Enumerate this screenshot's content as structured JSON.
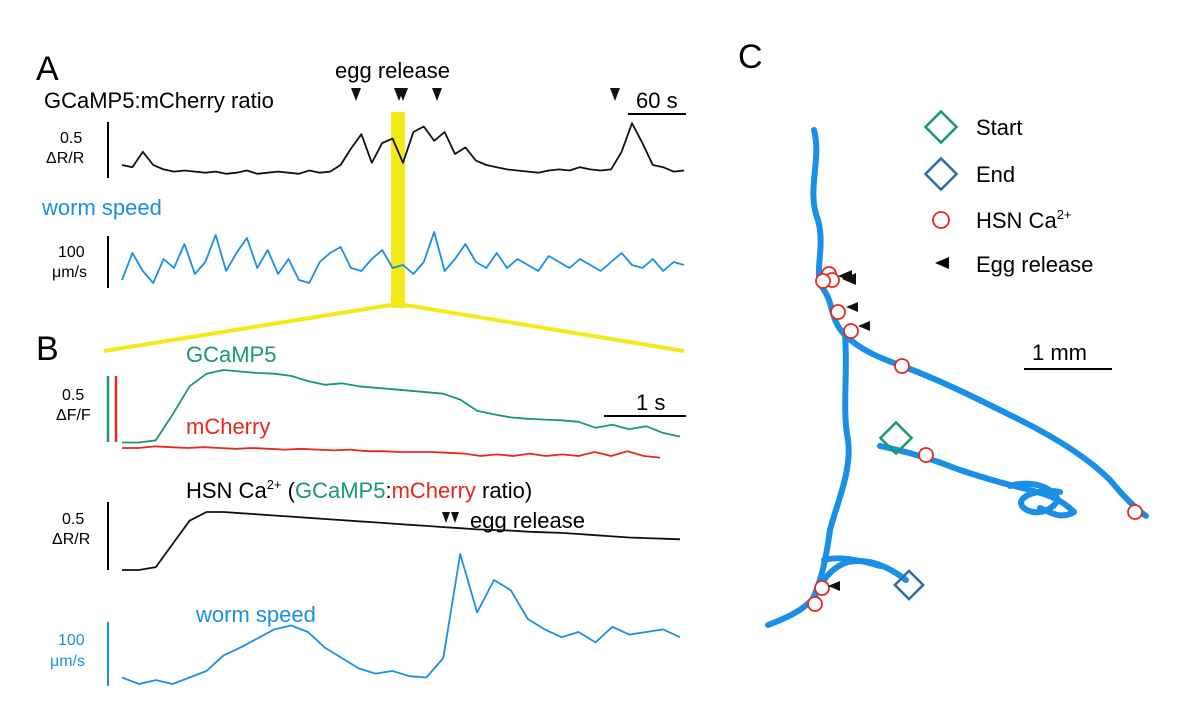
{
  "chart_data": [
    {
      "panel": "A",
      "type": "line",
      "title": "GCaMP5:mCherry ratio",
      "annotations": [
        "egg release"
      ],
      "scale_bars": {
        "time": "60 s",
        "ratio": [
          "0.5",
          "ΔR/R"
        ],
        "speed": [
          "100",
          "μm/s"
        ]
      },
      "series": [
        {
          "name": "GCaMP5:mCherry ratio",
          "color": "#111111",
          "values": [
            0.1,
            0.08,
            0.22,
            0.1,
            0.06,
            0.04,
            0.05,
            0.04,
            0.03,
            0.04,
            0.02,
            0.03,
            0.05,
            0.02,
            0.03,
            0.04,
            0.03,
            0.02,
            0.05,
            0.03,
            0.04,
            0.1,
            0.25,
            0.38,
            0.12,
            0.3,
            0.34,
            0.12,
            0.4,
            0.45,
            0.32,
            0.4,
            0.2,
            0.26,
            0.14,
            0.1,
            0.08,
            0.06,
            0.05,
            0.04,
            0.03,
            0.05,
            0.06,
            0.05,
            0.08,
            0.06,
            0.05,
            0.06,
            0.22,
            0.48,
            0.3,
            0.1,
            0.08,
            0.04,
            0.05
          ]
        },
        {
          "name": "worm speed",
          "color": "#1a8fe6",
          "label": "worm speed",
          "values": [
            0.1,
            0.55,
            0.25,
            0.05,
            0.45,
            0.3,
            0.7,
            0.2,
            0.4,
            0.85,
            0.25,
            0.55,
            0.8,
            0.3,
            0.6,
            0.2,
            0.45,
            0.1,
            0.05,
            0.4,
            0.55,
            0.65,
            0.3,
            0.25,
            0.45,
            0.6,
            0.3,
            0.35,
            0.2,
            0.4,
            0.9,
            0.25,
            0.45,
            0.7,
            0.4,
            0.3,
            0.55,
            0.3,
            0.45,
            0.35,
            0.25,
            0.5,
            0.4,
            0.3,
            0.45,
            0.35,
            0.25,
            0.4,
            0.55,
            0.35,
            0.3,
            0.45,
            0.25,
            0.4,
            0.35
          ]
        }
      ]
    },
    {
      "panel": "B",
      "type": "line",
      "scale_bars": {
        "time": "1 s",
        "fluor": [
          "0.5",
          "ΔF/F"
        ],
        "ratio": [
          "0.5",
          "ΔR/R"
        ],
        "speed": [
          "100",
          "μm/s"
        ]
      },
      "ratio_title": {
        "prefix": "HSN Ca",
        "sup": "2+",
        "open": " (",
        "gcamp": "GCaMP5",
        "colon": ":",
        "mcherry": "mCherry",
        "close": " ratio)"
      },
      "annotations": [
        "egg release"
      ],
      "series": [
        {
          "name": "GCaMP5",
          "color": "#1a9a6a",
          "values": [
            0.02,
            0.02,
            0.05,
            0.4,
            0.78,
            0.95,
            1.0,
            0.98,
            0.96,
            0.95,
            0.92,
            0.85,
            0.8,
            0.82,
            0.78,
            0.76,
            0.74,
            0.72,
            0.7,
            0.68,
            0.6,
            0.45,
            0.4,
            0.36,
            0.34,
            0.33,
            0.32,
            0.3,
            0.22,
            0.26,
            0.2,
            0.24,
            0.15,
            0.1
          ]
        },
        {
          "name": "mCherry",
          "color": "#e8281f",
          "values": [
            0.1,
            0.1,
            0.12,
            0.11,
            0.1,
            0.11,
            0.1,
            0.09,
            0.1,
            0.09,
            0.08,
            0.09,
            0.08,
            0.07,
            0.08,
            0.06,
            0.06,
            0.05,
            0.05,
            0.05,
            0.04,
            0.03,
            0.0,
            0.02,
            0.0,
            0.03,
            0.0,
            0.02,
            0.0,
            0.05,
            0.0,
            0.06,
            0.0,
            -0.02
          ]
        },
        {
          "name": "HSN Ca2+ ratio",
          "color": "#111111",
          "values": [
            0.0,
            0.0,
            0.05,
            0.45,
            0.85,
            1.0,
            1.0,
            0.98,
            0.96,
            0.94,
            0.92,
            0.9,
            0.88,
            0.86,
            0.84,
            0.82,
            0.8,
            0.78,
            0.76,
            0.74,
            0.72,
            0.7,
            0.69,
            0.68,
            0.66,
            0.65,
            0.64,
            0.62,
            0.6,
            0.58,
            0.56,
            0.55,
            0.54,
            0.53
          ]
        },
        {
          "name": "worm speed",
          "color": "#1a8fe6",
          "label": "worm speed",
          "values": [
            0.05,
            0.0,
            0.03,
            0.0,
            0.05,
            0.1,
            0.22,
            0.28,
            0.35,
            0.42,
            0.45,
            0.4,
            0.28,
            0.2,
            0.12,
            0.08,
            0.1,
            0.06,
            0.05,
            0.2,
            1.0,
            0.55,
            0.8,
            0.72,
            0.5,
            0.42,
            0.36,
            0.4,
            0.32,
            0.44,
            0.38,
            0.4,
            0.42,
            0.36
          ]
        }
      ]
    },
    {
      "panel": "C",
      "type": "scatter",
      "scale_bar": "1 mm",
      "legend": [
        {
          "label": "Start",
          "marker": "diamond",
          "color": "#1a9a6a"
        },
        {
          "label": "End",
          "marker": "diamond",
          "color": "#2a6fa8"
        },
        {
          "label": "HSN Ca",
          "sup": "2+",
          "marker": "circle",
          "color": "#e8281f"
        },
        {
          "label": "Egg release",
          "marker": "triangle",
          "color": "#111111"
        }
      ]
    }
  ],
  "colors": {
    "gcamp": "#1a9a6a",
    "mcherry": "#e8281f",
    "speed": "#1a8fe6",
    "highlight": "#f5e91a",
    "end": "#2a6fa8"
  }
}
